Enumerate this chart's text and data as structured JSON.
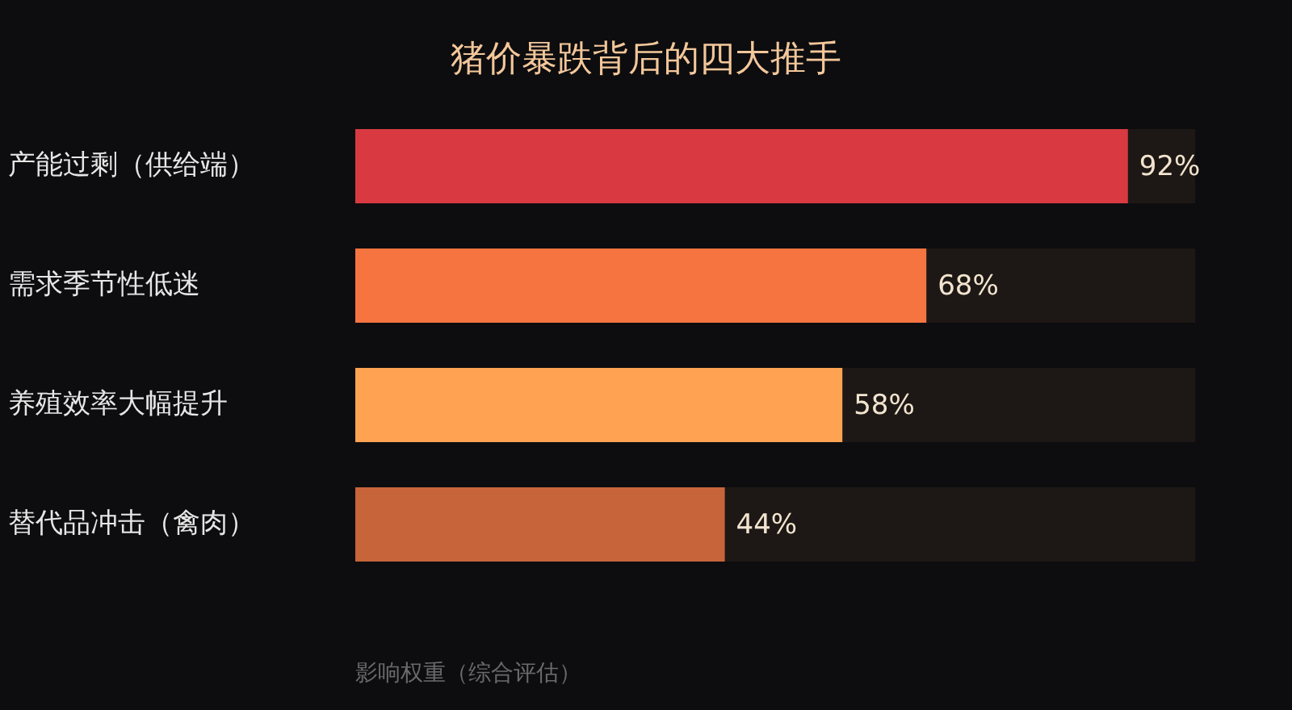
{
  "chart_data": {
    "type": "bar",
    "orientation": "horizontal",
    "title": "猪价暴跌背后的四大推手",
    "xlabel": "影响权重（综合评估）",
    "categories": [
      "产能过剩（供给端）",
      "需求季节性低迷",
      "养殖效率大幅提升",
      "替代品冲击（禽肉）"
    ],
    "values": [
      92,
      68,
      58,
      44
    ],
    "colors": [
      "#d93a42",
      "#f57440",
      "#ffa352",
      "#c8643a"
    ],
    "value_labels": [
      "92%",
      "68%",
      "58%",
      "44%"
    ],
    "xlim": [
      0,
      100
    ],
    "tick_labels": "y"
  }
}
